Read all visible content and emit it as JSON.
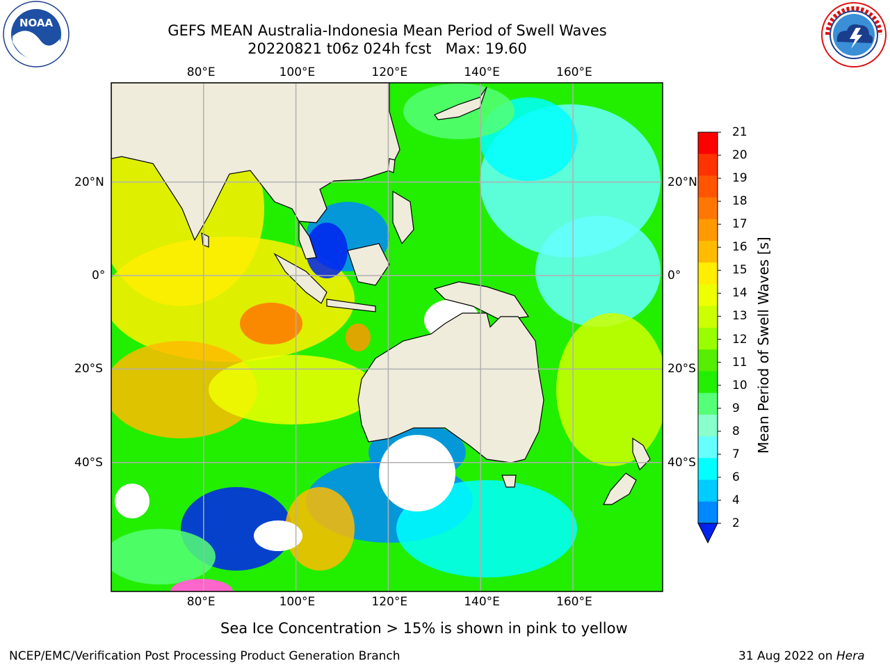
{
  "title": {
    "line1": "GEFS MEAN Australia-Indonesia Mean Period of Swell Waves",
    "line2": "20220821 t06z 024h fcst   Max: 19.60"
  },
  "map": {
    "lon_labels": [
      "80°E",
      "100°E",
      "120°E",
      "140°E",
      "160°E"
    ],
    "lat_labels": [
      "20°N",
      "0°",
      "20°S",
      "40°S"
    ],
    "land_color": "#efecdc",
    "grid_color": "#b0b0b0"
  },
  "colorbar": {
    "title": "Mean Period of Swell Waves [s]",
    "ticks": [
      "21",
      "20",
      "19",
      "18",
      "17",
      "16",
      "15",
      "14",
      "13",
      "12",
      "11",
      "10",
      "9",
      "8",
      "7",
      "6",
      "4",
      "2"
    ],
    "colors": [
      "#ff0000",
      "#ff3300",
      "#ff5500",
      "#ff7700",
      "#ff9900",
      "#ffbb00",
      "#ffee00",
      "#eeff00",
      "#ccff00",
      "#99ff00",
      "#55ee00",
      "#22ee00",
      "#55ff77",
      "#88ffcc",
      "#66ffff",
      "#00ffff",
      "#00ccff",
      "#0088ff",
      "#0022ee"
    ]
  },
  "sea_ice_note": "Sea Ice Concentration > 15% is shown in pink to yellow",
  "footer": {
    "left": "NCEP/EMC/Verification Post Processing Product Generation Branch",
    "right_date": "31 Aug 2022 on",
    "right_host": "Hera"
  },
  "logos": {
    "noaa_text": "NOAA",
    "noaa_ring": "NATIONAL OCEANIC AND ATMOSPHERIC ADMINISTRATION · U.S. DEPARTMENT OF COMMERCE",
    "nws_ring": "NATIONAL WEATHER SERVICE"
  }
}
